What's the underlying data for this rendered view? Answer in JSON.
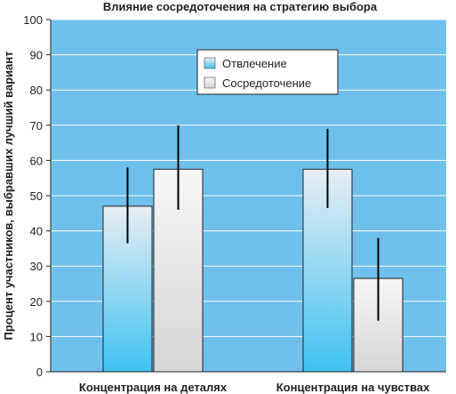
{
  "chart_data": {
    "type": "bar",
    "title": "Влияние сосредоточения на стратегию выбора",
    "xlabel": "",
    "ylabel": "Процент участников, выбравших лучший вариант",
    "ylim": [
      0,
      100
    ],
    "yticks": [
      0,
      10,
      20,
      30,
      40,
      50,
      60,
      70,
      80,
      90,
      100
    ],
    "categories": [
      "Концентрация на деталях",
      "Концентрация на чувствах"
    ],
    "series": [
      {
        "name": "Отвлечение",
        "values": [
          47,
          57.5
        ],
        "error_low": [
          36.5,
          46.5
        ],
        "error_high": [
          58,
          69
        ],
        "color": "#5bc8f0"
      },
      {
        "name": "Сосредоточение",
        "values": [
          57.5,
          26.5
        ],
        "error_low": [
          46,
          14.5
        ],
        "error_high": [
          70,
          38
        ],
        "color": "#dcdddf"
      }
    ],
    "legend_position": "top-right",
    "grid": true,
    "plot_background": "#6fc0eb",
    "grid_color": "#ffffff"
  }
}
